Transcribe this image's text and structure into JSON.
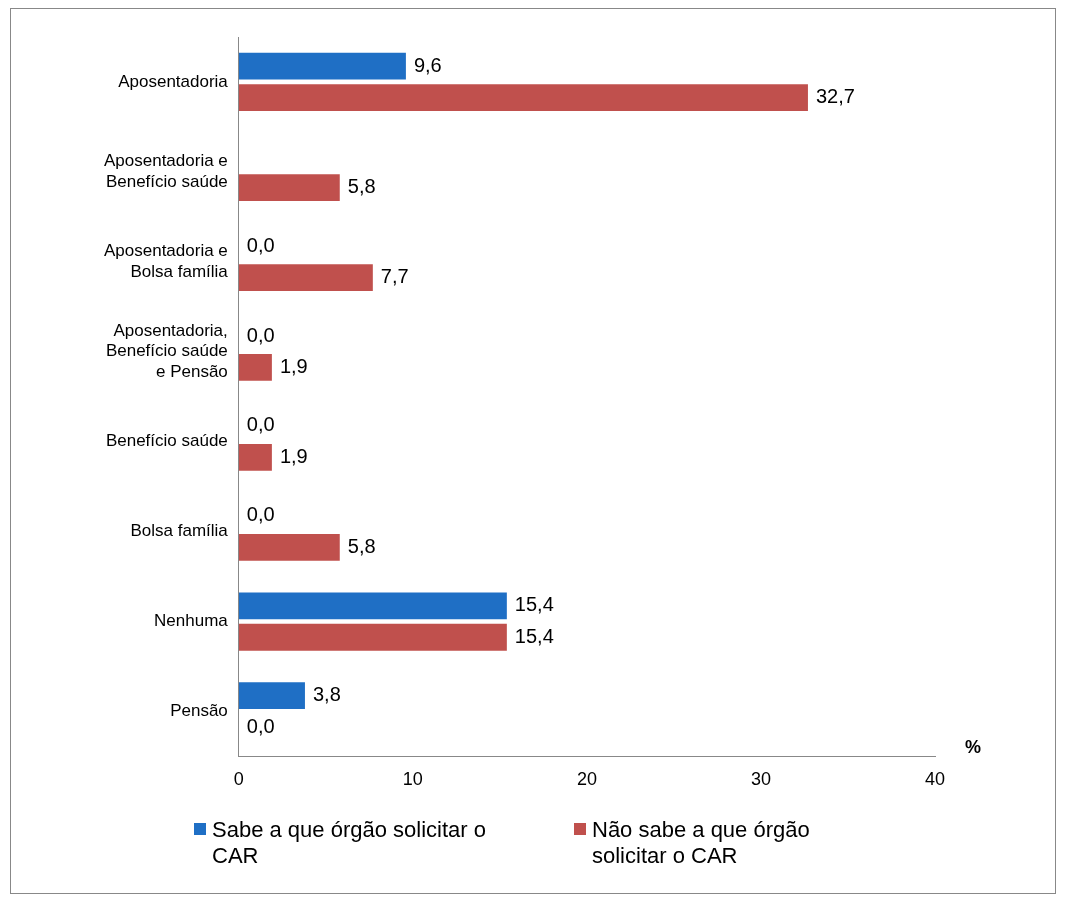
{
  "chart_data": {
    "type": "bar",
    "orientation": "horizontal",
    "xlabel": "%",
    "categories": [
      "Aposentadoria",
      "Aposentadoria e Benefício saúde",
      "Aposentadoria e Bolsa família",
      "Aposentadoria, Benefício saúde e Pensão",
      "Benefício saúde",
      "Bolsa família",
      "Nenhuma",
      "Pensão"
    ],
    "series": [
      {
        "name": "Sabe a que órgão solicitar o CAR",
        "color": "#1f6fc5",
        "values": [
          9.6,
          0,
          0,
          0,
          0,
          0,
          15.4,
          3.8
        ],
        "value_labels": [
          "9,6",
          null,
          "0,0",
          "0,0",
          "0,0",
          "0,0",
          "15,4",
          "3,8"
        ]
      },
      {
        "name": "Não sabe a que órgão solicitar o CAR",
        "color": "#c0504d",
        "values": [
          32.7,
          5.8,
          7.7,
          1.9,
          1.9,
          5.8,
          15.4,
          0
        ],
        "value_labels": [
          "32,7",
          "5,8",
          "7,7",
          "1,9",
          "1,9",
          "5,8",
          "15,4",
          "0,0"
        ]
      }
    ],
    "xlim": [
      0,
      40
    ],
    "xticks": [
      0,
      10,
      20,
      30,
      40
    ],
    "grid": false,
    "legend": "bottom"
  }
}
